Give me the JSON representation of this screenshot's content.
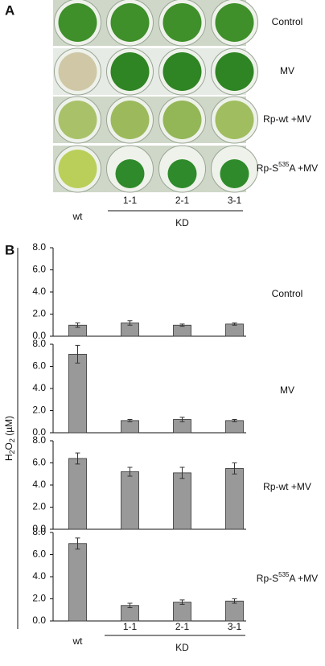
{
  "panel_labels": [
    "A",
    "B"
  ],
  "ylabel_parts": [
    "H",
    "2",
    "O",
    "2",
    " (µM)"
  ],
  "chart_data": [
    {
      "type": "bar",
      "title_parts": [
        "Control"
      ],
      "categories": [
        "wt",
        "1-1",
        "2-1",
        "3-1"
      ],
      "values": [
        1.0,
        1.2,
        1.0,
        1.1
      ],
      "errors": [
        0.2,
        0.2,
        0.1,
        0.1
      ],
      "color": "#999999",
      "ylim": [
        0,
        8
      ],
      "yticks": [
        {
          "value": 0,
          "label": "0.0"
        },
        {
          "value": 2,
          "label": "2.0"
        },
        {
          "value": 4,
          "label": "4.0"
        },
        {
          "value": 6,
          "label": "6.0"
        },
        {
          "value": 8,
          "label": "8.0"
        }
      ]
    },
    {
      "type": "bar",
      "title_parts": [
        "MV"
      ],
      "categories": [
        "wt",
        "1-1",
        "2-1",
        "3-1"
      ],
      "values": [
        7.1,
        1.1,
        1.2,
        1.1
      ],
      "errors": [
        0.8,
        0.1,
        0.2,
        0.1
      ],
      "color": "#999999",
      "ylim": [
        0,
        8
      ],
      "yticks": [
        {
          "value": 0,
          "label": "0.0"
        },
        {
          "value": 2,
          "label": "2.0"
        },
        {
          "value": 4,
          "label": "4.0"
        },
        {
          "value": 6,
          "label": "6.0"
        },
        {
          "value": 8,
          "label": "8.0"
        }
      ]
    },
    {
      "type": "bar",
      "title_parts": [
        "Rp-wt +MV"
      ],
      "categories": [
        "wt",
        "1-1",
        "2-1",
        "3-1"
      ],
      "values": [
        6.4,
        5.2,
        5.1,
        5.5
      ],
      "errors": [
        0.5,
        0.4,
        0.5,
        0.5
      ],
      "color": "#999999",
      "ylim": [
        0,
        8
      ],
      "yticks": [
        {
          "value": 0,
          "label": "0.0"
        },
        {
          "value": 2,
          "label": "2.0"
        },
        {
          "value": 4,
          "label": "4.0"
        },
        {
          "value": 6,
          "label": "6.0"
        },
        {
          "value": 8,
          "label": "8.0"
        }
      ]
    },
    {
      "type": "bar",
      "title_parts": [
        "Rp-S",
        "535",
        "A +MV"
      ],
      "categories": [
        "wt",
        "1-1",
        "2-1",
        "3-1"
      ],
      "values": [
        7.0,
        1.4,
        1.7,
        1.8
      ],
      "errors": [
        0.5,
        0.2,
        0.2,
        0.2
      ],
      "color": "#999999",
      "ylim": [
        0,
        8
      ],
      "yticks": [
        {
          "value": 0,
          "label": "0.0"
        },
        {
          "value": 2,
          "label": "2.0"
        },
        {
          "value": 4,
          "label": "4.0"
        },
        {
          "value": 6,
          "label": "6.0"
        },
        {
          "value": 8,
          "label": "8.0"
        }
      ],
      "group_label": "KD"
    }
  ]
}
